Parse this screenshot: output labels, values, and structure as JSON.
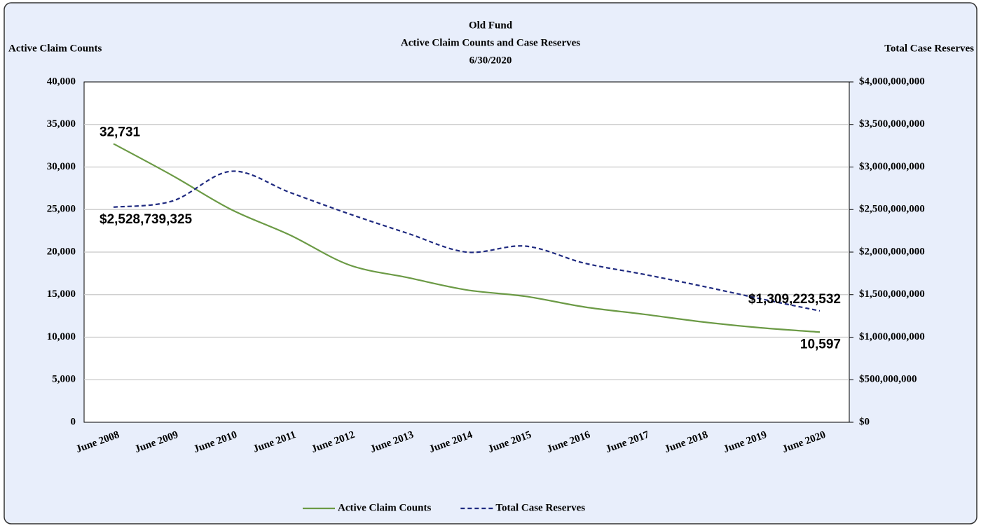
{
  "chart_data": {
    "type": "line",
    "title": [
      "Old Fund",
      "Active Claim Counts and Case Reserves",
      "6/30/2020"
    ],
    "ylabel": "Active Claim Counts",
    "y2label": "Total Case Reserves",
    "categories": [
      "June 2008",
      "June 2009",
      "June 2010",
      "June 2011",
      "June 2012",
      "June 2013",
      "June 2014",
      "June 2015",
      "June 2016",
      "June 2017",
      "June 2018",
      "June 2019",
      "June 2020"
    ],
    "series": [
      {
        "name": "Active Claim Counts",
        "color": "#6b9a45",
        "dashed": false,
        "values": [
          32731,
          29000,
          25000,
          22000,
          18500,
          17000,
          15550,
          14800,
          13550,
          12700,
          11800,
          11100,
          10597
        ],
        "value_labels": [
          "32,731",
          null,
          null,
          null,
          null,
          null,
          null,
          null,
          null,
          null,
          null,
          null,
          "10,597"
        ]
      },
      {
        "name": "Total Case Reserves",
        "color": "#1f2a80",
        "dashed": true,
        "axis": "y2",
        "values": [
          2528739325,
          2600000000,
          2950000000,
          2700000000,
          2450000000,
          2220000000,
          2000000000,
          2070000000,
          1870000000,
          1740000000,
          1600000000,
          1450000000,
          1309223532
        ],
        "value_labels": [
          "$2,528,739,325",
          null,
          null,
          null,
          null,
          null,
          null,
          null,
          null,
          null,
          null,
          null,
          "$1,309,223,532"
        ]
      }
    ],
    "ylim": [
      0,
      40000
    ],
    "yticks": [
      0,
      {
        "value": 5000,
        "label": "5,000"
      },
      {
        "value": 10000,
        "label": "10,000"
      },
      {
        "value": 15000,
        "label": "15,000"
      },
      {
        "value": 20000,
        "label": "20,000"
      },
      {
        "value": 25000,
        "label": "25,000"
      },
      {
        "value": 30000,
        "label": "30,000"
      },
      {
        "value": 35000,
        "label": "35,000"
      },
      {
        "value": 40000,
        "label": "40,000"
      }
    ],
    "y2lim": [
      0,
      4000000000
    ],
    "y2ticks": [
      {
        "value": 0,
        "label": "$0"
      },
      {
        "value": 500000000,
        "label": "$500,000,000"
      },
      {
        "value": 1000000000,
        "label": "$1,000,000,000"
      },
      {
        "value": 1500000000,
        "label": "$1,500,000,000"
      },
      {
        "value": 2000000000,
        "label": "$2,000,000,000"
      },
      {
        "value": 2500000000,
        "label": "$2,500,000,000"
      },
      {
        "value": 3000000000,
        "label": "$3,000,000,000"
      },
      {
        "value": 3500000000,
        "label": "$3,500,000,000"
      },
      {
        "value": 4000000000,
        "label": "$4,000,000,000"
      }
    ],
    "grid": true,
    "legend": "bottom"
  }
}
